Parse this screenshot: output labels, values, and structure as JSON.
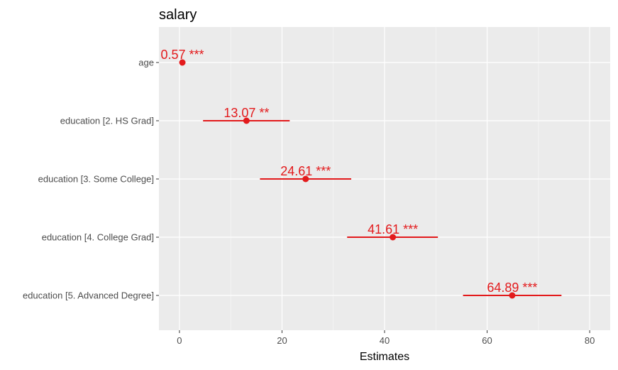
{
  "chart_data": {
    "type": "forest",
    "title": "salary",
    "xlabel": "Estimates",
    "ylabel": "",
    "xlim": [
      -4,
      84
    ],
    "xticks": [
      0,
      20,
      40,
      60,
      80
    ],
    "xtick_labels": [
      "0",
      "20",
      "40",
      "60",
      "80"
    ],
    "grid": true,
    "color": "#e31a1c",
    "terms": [
      {
        "label": "age",
        "estimate": 0.57,
        "ci_low": 0.4,
        "ci_high": 0.75,
        "value_label": "0.57 ***"
      },
      {
        "label": "education [2. HS Grad]",
        "estimate": 13.07,
        "ci_low": 4.6,
        "ci_high": 21.5,
        "value_label": "13.07 **"
      },
      {
        "label": "education [3. Some College]",
        "estimate": 24.61,
        "ci_low": 15.7,
        "ci_high": 33.5,
        "value_label": "24.61 ***"
      },
      {
        "label": "education [4. College Grad]",
        "estimate": 41.61,
        "ci_low": 32.7,
        "ci_high": 50.4,
        "value_label": "41.61 ***"
      },
      {
        "label": "education [5. Advanced Degree]",
        "estimate": 64.89,
        "ci_low": 55.3,
        "ci_high": 74.5,
        "value_label": "64.89 ***"
      }
    ]
  }
}
